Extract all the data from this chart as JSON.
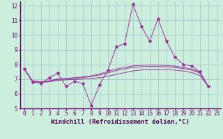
{
  "background_color": "#cceedd",
  "grid_color": "#aabbcc",
  "line_color": "#993399",
  "marker": "*",
  "xlim": [
    -0.5,
    23.5
  ],
  "ylim": [
    5,
    12.3
  ],
  "xticks": [
    0,
    1,
    2,
    3,
    4,
    5,
    6,
    7,
    8,
    9,
    10,
    11,
    12,
    13,
    14,
    15,
    16,
    17,
    18,
    19,
    20,
    21,
    22,
    23
  ],
  "yticks": [
    5,
    6,
    7,
    8,
    9,
    10,
    11,
    12
  ],
  "xlabel": "Windchill (Refroidissement éolien,°C)",
  "series_main_x": [
    0,
    1,
    2,
    3,
    4,
    5,
    6,
    7,
    8,
    9,
    10,
    11,
    12,
    13,
    14,
    15,
    16,
    17,
    18,
    19,
    20,
    21,
    22
  ],
  "series_main_y": [
    7.7,
    6.8,
    6.7,
    7.1,
    7.4,
    6.5,
    6.85,
    6.7,
    5.2,
    6.6,
    7.6,
    9.2,
    9.4,
    12.1,
    10.6,
    9.6,
    11.1,
    9.6,
    8.5,
    8.0,
    7.9,
    7.5,
    6.5
  ],
  "smooth1_x": [
    0,
    1,
    2,
    3,
    4,
    5,
    6,
    7,
    8,
    9,
    10,
    11,
    12,
    13,
    14,
    15,
    16,
    17,
    18,
    19,
    20,
    21,
    22
  ],
  "smooth1_y": [
    7.7,
    6.82,
    6.78,
    6.82,
    6.92,
    6.95,
    6.97,
    7.0,
    7.05,
    7.1,
    7.2,
    7.32,
    7.44,
    7.56,
    7.62,
    7.65,
    7.66,
    7.65,
    7.62,
    7.55,
    7.45,
    7.25,
    6.5
  ],
  "smooth2_x": [
    0,
    1,
    2,
    3,
    4,
    5,
    6,
    7,
    8,
    9,
    10,
    11,
    12,
    13,
    14,
    15,
    16,
    17,
    18,
    19,
    20,
    21,
    22
  ],
  "smooth2_y": [
    7.7,
    6.85,
    6.8,
    6.85,
    6.98,
    7.0,
    7.05,
    7.1,
    7.18,
    7.28,
    7.42,
    7.58,
    7.7,
    7.8,
    7.84,
    7.86,
    7.86,
    7.84,
    7.8,
    7.72,
    7.62,
    7.42,
    6.5
  ],
  "smooth3_x": [
    0,
    1,
    2,
    3,
    4,
    5,
    6,
    7,
    8,
    9,
    10,
    11,
    12,
    13,
    14,
    15,
    16,
    17,
    18,
    19,
    20,
    21,
    22
  ],
  "smooth3_y": [
    7.7,
    6.88,
    6.82,
    6.88,
    7.02,
    7.05,
    7.1,
    7.15,
    7.22,
    7.35,
    7.52,
    7.68,
    7.8,
    7.9,
    7.94,
    7.96,
    7.96,
    7.93,
    7.88,
    7.8,
    7.68,
    7.48,
    6.5
  ],
  "xlabel_fontsize": 6.5,
  "tick_fontsize": 5.5
}
